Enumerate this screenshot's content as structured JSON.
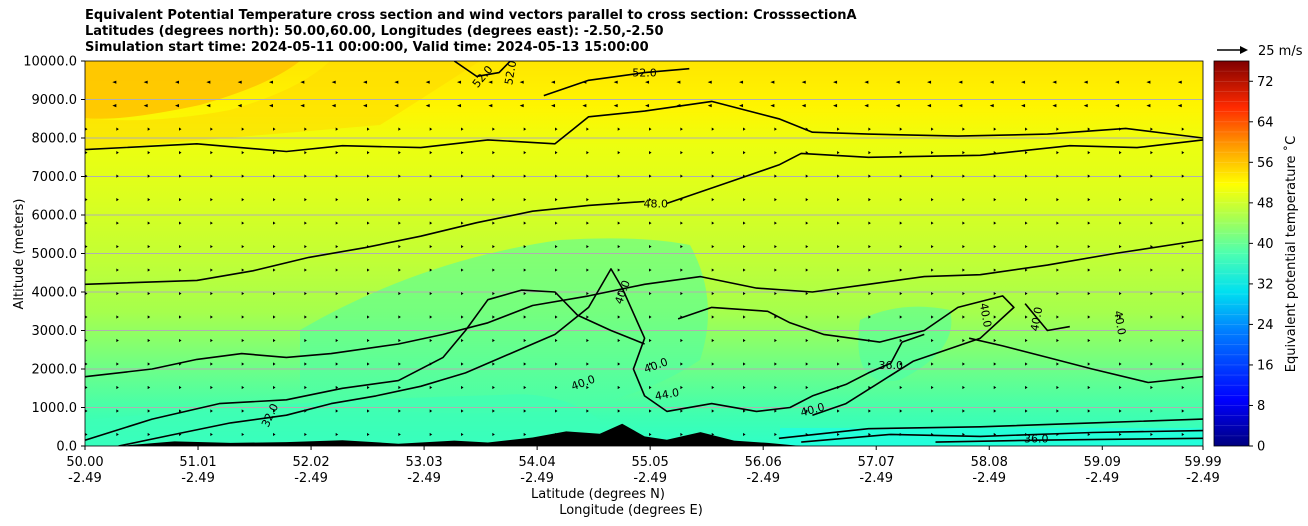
{
  "chart_data": {
    "type": "contourf",
    "title_lines": [
      "Equivalent Potential Temperature cross section and wind vectors parallel to cross section: CrosssectionA",
      "Latitudes (degrees north): 50.00,60.00, Longitudes (degrees east): -2.50,-2.50",
      "Simulation start time: 2024-05-11 00:00:00, Valid time: 2024-05-13 15:00:00"
    ],
    "ylabel": "Altitude (meters)",
    "xlabel_lat": "Latitude (degrees N)",
    "xlabel_lon": "Longitude (degrees E)",
    "ylim": [
      0,
      10000
    ],
    "y_ticks": [
      "0.0",
      "1000.0",
      "2000.0",
      "3000.0",
      "4000.0",
      "5000.0",
      "6000.0",
      "7000.0",
      "8000.0",
      "9000.0",
      "10000.0"
    ],
    "y_tick_values": [
      0,
      1000,
      2000,
      3000,
      4000,
      5000,
      6000,
      7000,
      8000,
      9000,
      10000
    ],
    "xlim": [
      50.0,
      59.99
    ],
    "x_ticks": [
      {
        "value": 50.0,
        "lat": "50.00",
        "lon": "-2.49"
      },
      {
        "value": 51.01,
        "lat": "51.01",
        "lon": "-2.49"
      },
      {
        "value": 52.02,
        "lat": "52.02",
        "lon": "-2.49"
      },
      {
        "value": 53.03,
        "lat": "53.03",
        "lon": "-2.49"
      },
      {
        "value": 54.04,
        "lat": "54.04",
        "lon": "-2.49"
      },
      {
        "value": 55.05,
        "lat": "55.05",
        "lon": "-2.49"
      },
      {
        "value": 56.06,
        "lat": "56.06",
        "lon": "-2.49"
      },
      {
        "value": 57.07,
        "lat": "57.07",
        "lon": "-2.49"
      },
      {
        "value": 58.08,
        "lat": "58.08",
        "lon": "-2.49"
      },
      {
        "value": 59.09,
        "lat": "59.09",
        "lon": "-2.49"
      },
      {
        "value": 59.99,
        "lat": "59.99",
        "lon": "-2.49"
      }
    ],
    "grid_horizontal": true,
    "colorbar": {
      "label": "Equivalent potential temperature ˚C",
      "range": [
        0,
        76
      ],
      "ticks": [
        "0",
        "8",
        "16",
        "24",
        "32",
        "40",
        "48",
        "56",
        "64",
        "72"
      ],
      "tick_values": [
        0,
        8,
        16,
        24,
        32,
        40,
        48,
        56,
        64,
        72
      ]
    },
    "quiver_key": "25 m/s",
    "contour_lines": [
      {
        "level": 52,
        "points": [
          [
            50.0,
            7700
          ],
          [
            51.0,
            7850
          ],
          [
            51.8,
            7650
          ],
          [
            52.3,
            7800
          ],
          [
            53.0,
            7750
          ],
          [
            53.6,
            7950
          ],
          [
            54.2,
            7850
          ],
          [
            54.5,
            8550
          ],
          [
            55.0,
            8700
          ],
          [
            55.6,
            8950
          ],
          [
            56.2,
            8500
          ],
          [
            56.5,
            8150
          ],
          [
            57.0,
            8100
          ],
          [
            57.8,
            8050
          ],
          [
            58.6,
            8100
          ],
          [
            59.3,
            8250
          ],
          [
            59.99,
            8000
          ]
        ]
      },
      {
        "level": 52,
        "points": [
          [
            54.1,
            9100
          ],
          [
            54.5,
            9500
          ],
          [
            55.0,
            9700
          ],
          [
            55.4,
            9800
          ]
        ]
      },
      {
        "level": 52,
        "points": [
          [
            53.3,
            10000
          ],
          [
            53.5,
            9600
          ],
          [
            53.7,
            9700
          ],
          [
            53.8,
            10000
          ]
        ]
      },
      {
        "level": 48,
        "points": [
          [
            50.0,
            4200
          ],
          [
            51.0,
            4300
          ],
          [
            51.5,
            4550
          ],
          [
            52.0,
            4900
          ],
          [
            52.5,
            5150
          ],
          [
            53.0,
            5450
          ],
          [
            53.5,
            5800
          ],
          [
            54.0,
            6100
          ],
          [
            54.5,
            6250
          ],
          [
            55.0,
            6350
          ]
        ]
      },
      {
        "level": 48,
        "points": [
          [
            55.2,
            6300
          ],
          [
            55.8,
            6900
          ],
          [
            56.2,
            7300
          ],
          [
            56.4,
            7600
          ],
          [
            57.0,
            7500
          ],
          [
            58.0,
            7550
          ],
          [
            58.8,
            7800
          ],
          [
            59.4,
            7750
          ],
          [
            59.99,
            7950
          ]
        ]
      },
      {
        "level": 44,
        "points": [
          [
            50.0,
            1800
          ],
          [
            50.6,
            2000
          ],
          [
            51.0,
            2250
          ],
          [
            51.4,
            2400
          ],
          [
            51.8,
            2300
          ],
          [
            52.2,
            2400
          ],
          [
            52.8,
            2650
          ],
          [
            53.2,
            2900
          ],
          [
            53.6,
            3200
          ],
          [
            54.0,
            3650
          ],
          [
            54.5,
            3900
          ],
          [
            55.0,
            4200
          ],
          [
            55.5,
            4400
          ],
          [
            56.0,
            4100
          ],
          [
            56.5,
            4000
          ],
          [
            57.0,
            4200
          ],
          [
            57.5,
            4400
          ],
          [
            58.0,
            4450
          ],
          [
            58.6,
            4700
          ],
          [
            59.2,
            5000
          ],
          [
            59.99,
            5350
          ]
        ]
      },
      {
        "level": 44,
        "points": [
          [
            50.0,
            150
          ],
          [
            50.6,
            700
          ],
          [
            51.2,
            1100
          ],
          [
            51.8,
            1200
          ],
          [
            52.3,
            1500
          ],
          [
            52.8,
            1700
          ],
          [
            53.2,
            2300
          ],
          [
            53.4,
            3000
          ],
          [
            53.6,
            3800
          ],
          [
            53.9,
            4050
          ],
          [
            54.2,
            4000
          ],
          [
            54.4,
            3400
          ],
          [
            54.7,
            3000
          ],
          [
            55.0,
            2650
          ]
        ]
      },
      {
        "level": 40,
        "points": [
          [
            50.3,
            0
          ],
          [
            50.8,
            300
          ],
          [
            51.3,
            600
          ],
          [
            51.8,
            800
          ],
          [
            52.2,
            1100
          ],
          [
            52.6,
            1300
          ],
          [
            53.0,
            1550
          ],
          [
            53.4,
            1900
          ],
          [
            53.8,
            2400
          ],
          [
            54.2,
            2900
          ],
          [
            54.5,
            3600
          ],
          [
            54.7,
            4600
          ],
          [
            54.8,
            4100
          ],
          [
            55.0,
            2800
          ],
          [
            54.9,
            2000
          ],
          [
            55.0,
            1300
          ],
          [
            55.2,
            900
          ],
          [
            55.6,
            1100
          ],
          [
            56.0,
            900
          ],
          [
            56.3,
            1000
          ],
          [
            56.5,
            1300
          ],
          [
            56.8,
            1600
          ],
          [
            57.0,
            1900
          ],
          [
            57.2,
            2150
          ],
          [
            57.3,
            2700
          ],
          [
            57.5,
            2900
          ]
        ]
      },
      {
        "level": 40,
        "points": [
          [
            55.3,
            3300
          ],
          [
            55.6,
            3600
          ],
          [
            56.1,
            3500
          ],
          [
            56.3,
            3200
          ],
          [
            56.6,
            2900
          ],
          [
            57.1,
            2700
          ],
          [
            57.5,
            3000
          ],
          [
            57.8,
            3600
          ],
          [
            58.2,
            3900
          ],
          [
            58.3,
            3600
          ],
          [
            58.0,
            2800
          ],
          [
            57.4,
            2200
          ],
          [
            56.8,
            1100
          ],
          [
            56.5,
            800
          ]
        ]
      },
      {
        "level": 40,
        "points": [
          [
            58.4,
            3700
          ],
          [
            58.6,
            3000
          ],
          [
            58.8,
            3100
          ]
        ]
      },
      {
        "level": 40,
        "points": [
          [
            59.99,
            1800
          ],
          [
            59.5,
            1650
          ],
          [
            59.0,
            2000
          ],
          [
            58.6,
            2300
          ],
          [
            58.2,
            2600
          ],
          [
            57.9,
            2800
          ]
        ]
      },
      {
        "level": 36,
        "points": [
          [
            56.2,
            200
          ],
          [
            57.0,
            450
          ],
          [
            58.0,
            500
          ],
          [
            59.0,
            600
          ],
          [
            59.99,
            700
          ]
        ]
      },
      {
        "level": 36,
        "points": [
          [
            56.4,
            100
          ],
          [
            57.2,
            300
          ],
          [
            58.0,
            250
          ],
          [
            59.0,
            350
          ],
          [
            59.99,
            400
          ]
        ]
      },
      {
        "level": 36,
        "points": [
          [
            57.6,
            100
          ],
          [
            58.5,
            150
          ],
          [
            59.99,
            200
          ]
        ]
      }
    ],
    "contour_labels": [
      {
        "text": "52.0",
        "x": 53.55,
        "y": 9600,
        "rot": -50
      },
      {
        "text": "52.0",
        "x": 53.8,
        "y": 9700,
        "rot": -80
      },
      {
        "text": "52.0",
        "x": 55.0,
        "y": 9700,
        "rot": 0
      },
      {
        "text": "48.0",
        "x": 55.1,
        "y": 6300,
        "rot": 0
      },
      {
        "text": "40.0",
        "x": 54.8,
        "y": 4000,
        "rot": -70
      },
      {
        "text": "40.0",
        "x": 58.05,
        "y": 3400,
        "rot": 80
      },
      {
        "text": "40.0",
        "x": 58.5,
        "y": 3300,
        "rot": -80
      },
      {
        "text": "40.0",
        "x": 59.25,
        "y": 3200,
        "rot": 80
      },
      {
        "text": "40.0",
        "x": 54.45,
        "y": 1650,
        "rot": -20
      },
      {
        "text": "40.0",
        "x": 55.1,
        "y": 2100,
        "rot": -20
      },
      {
        "text": "40.0",
        "x": 56.5,
        "y": 950,
        "rot": -15
      },
      {
        "text": "36.0",
        "x": 57.2,
        "y": 2100,
        "rot": 0
      },
      {
        "text": "36.0",
        "x": 58.5,
        "y": 200,
        "rot": 0
      },
      {
        "text": "32.0",
        "x": 51.65,
        "y": 800,
        "rot": -65
      },
      {
        "text": "44.0",
        "x": 55.2,
        "y": 1350,
        "rot": -10
      }
    ],
    "terrain_peak_heights_m": [
      [
        50.3,
        0
      ],
      [
        50.8,
        120
      ],
      [
        51.3,
        80
      ],
      [
        51.8,
        100
      ],
      [
        52.3,
        150
      ],
      [
        52.8,
        60
      ],
      [
        53.3,
        140
      ],
      [
        53.6,
        90
      ],
      [
        54.0,
        220
      ],
      [
        54.3,
        380
      ],
      [
        54.6,
        320
      ],
      [
        54.8,
        580
      ],
      [
        55.0,
        250
      ],
      [
        55.2,
        160
      ],
      [
        55.5,
        360
      ],
      [
        55.8,
        140
      ],
      [
        56.1,
        80
      ],
      [
        56.4,
        0
      ]
    ]
  }
}
